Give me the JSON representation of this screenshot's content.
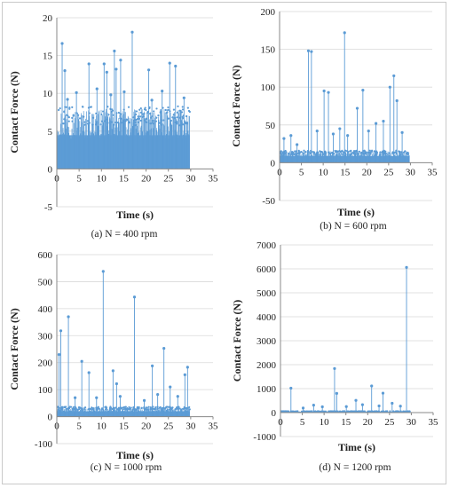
{
  "figure": {
    "series_color": "#5b9bd5",
    "axis_color": "#888888",
    "grid_color": "#d9d9d9"
  },
  "chart_data": [
    {
      "id": "a",
      "type": "scatter",
      "caption": "(a) N = 400 rpm",
      "xlabel": "Time (s)",
      "ylabel": "Contact Force (N)",
      "xlim": [
        0,
        35
      ],
      "ylim": [
        -5,
        20
      ],
      "xticks": [
        0,
        5,
        10,
        15,
        20,
        25,
        30,
        35
      ],
      "yticks": [
        -5,
        0,
        5,
        10,
        15,
        20
      ],
      "dense_band": {
        "x_range": [
          0.1,
          29.8
        ],
        "y_level": 7.2,
        "y_top": 8.2
      },
      "spikes": [
        {
          "x": 1.2,
          "y": 16.6
        },
        {
          "x": 1.8,
          "y": 13.0
        },
        {
          "x": 2.4,
          "y": 9.2
        },
        {
          "x": 4.4,
          "y": 10.1
        },
        {
          "x": 7.2,
          "y": 13.9
        },
        {
          "x": 9.0,
          "y": 10.6
        },
        {
          "x": 10.6,
          "y": 13.9
        },
        {
          "x": 11.2,
          "y": 12.8
        },
        {
          "x": 12.1,
          "y": 9.8
        },
        {
          "x": 12.9,
          "y": 15.6
        },
        {
          "x": 13.3,
          "y": 13.2
        },
        {
          "x": 14.3,
          "y": 14.4
        },
        {
          "x": 15.1,
          "y": 10.2
        },
        {
          "x": 16.9,
          "y": 18.1
        },
        {
          "x": 20.6,
          "y": 13.1
        },
        {
          "x": 21.3,
          "y": 9.1
        },
        {
          "x": 23.6,
          "y": 10.3
        },
        {
          "x": 25.3,
          "y": 14.0
        },
        {
          "x": 26.6,
          "y": 13.6
        },
        {
          "x": 28.5,
          "y": 9.4
        }
      ]
    },
    {
      "id": "b",
      "type": "scatter",
      "caption": "(b) N = 600 rpm",
      "xlabel": "Time (s)",
      "ylabel": "Contact Force (N)",
      "xlim": [
        0,
        35
      ],
      "ylim": [
        -50,
        200
      ],
      "xticks": [
        0,
        5,
        10,
        15,
        20,
        25,
        30,
        35
      ],
      "yticks": [
        -50,
        0,
        50,
        100,
        150,
        200
      ],
      "dense_band": {
        "x_range": [
          0.1,
          29.8
        ],
        "y_level": 14,
        "y_top": 20
      },
      "spikes": [
        {
          "x": 1.0,
          "y": 32
        },
        {
          "x": 2.6,
          "y": 36
        },
        {
          "x": 4.0,
          "y": 24
        },
        {
          "x": 6.6,
          "y": 148
        },
        {
          "x": 7.3,
          "y": 147
        },
        {
          "x": 8.6,
          "y": 42
        },
        {
          "x": 10.2,
          "y": 95
        },
        {
          "x": 11.2,
          "y": 93
        },
        {
          "x": 12.3,
          "y": 38
        },
        {
          "x": 13.8,
          "y": 45
        },
        {
          "x": 14.9,
          "y": 172
        },
        {
          "x": 15.6,
          "y": 36
        },
        {
          "x": 17.8,
          "y": 72
        },
        {
          "x": 19.1,
          "y": 96
        },
        {
          "x": 20.4,
          "y": 42
        },
        {
          "x": 22.1,
          "y": 52
        },
        {
          "x": 23.8,
          "y": 55
        },
        {
          "x": 25.3,
          "y": 100
        },
        {
          "x": 26.2,
          "y": 115
        },
        {
          "x": 26.9,
          "y": 82
        },
        {
          "x": 28.1,
          "y": 40
        }
      ]
    },
    {
      "id": "c",
      "type": "scatter",
      "caption": "(c) N = 1000 rpm",
      "xlabel": "Time (s)",
      "ylabel": "Contact Force (N)",
      "xlim": [
        0,
        35
      ],
      "ylim": [
        -100,
        600
      ],
      "xticks": [
        0,
        5,
        10,
        15,
        20,
        25,
        30,
        35
      ],
      "yticks": [
        -100,
        0,
        100,
        200,
        300,
        400,
        500,
        600
      ],
      "dense_band": {
        "x_range": [
          0.1,
          29.8
        ],
        "y_level": 32,
        "y_top": 50
      },
      "spikes": [
        {
          "x": 0.5,
          "y": 230
        },
        {
          "x": 0.9,
          "y": 318
        },
        {
          "x": 2.6,
          "y": 370
        },
        {
          "x": 4.1,
          "y": 70
        },
        {
          "x": 5.6,
          "y": 205
        },
        {
          "x": 7.2,
          "y": 163
        },
        {
          "x": 8.9,
          "y": 70
        },
        {
          "x": 10.4,
          "y": 538
        },
        {
          "x": 12.6,
          "y": 170
        },
        {
          "x": 13.4,
          "y": 122
        },
        {
          "x": 14.2,
          "y": 75
        },
        {
          "x": 17.4,
          "y": 443
        },
        {
          "x": 19.6,
          "y": 60
        },
        {
          "x": 21.4,
          "y": 188
        },
        {
          "x": 22.6,
          "y": 82
        },
        {
          "x": 24.0,
          "y": 253
        },
        {
          "x": 25.4,
          "y": 110
        },
        {
          "x": 27.1,
          "y": 75
        },
        {
          "x": 28.7,
          "y": 155
        },
        {
          "x": 29.3,
          "y": 183
        }
      ]
    },
    {
      "id": "d",
      "type": "scatter",
      "caption": "(d) N = 1200 rpm",
      "xlabel": "Time (s)",
      "ylabel": "Contact Force (N)",
      "xlim": [
        0,
        35
      ],
      "ylim": [
        -1000,
        7000
      ],
      "xticks": [
        0,
        5,
        10,
        15,
        20,
        25,
        30,
        35
      ],
      "yticks": [
        -1000,
        0,
        1000,
        2000,
        3000,
        4000,
        5000,
        6000,
        7000
      ],
      "dense_band": {
        "x_range": [
          0.1,
          29.8
        ],
        "y_level": 50,
        "y_top": 110
      },
      "spikes": [
        {
          "x": 2.4,
          "y": 1020
        },
        {
          "x": 5.2,
          "y": 190
        },
        {
          "x": 7.6,
          "y": 310
        },
        {
          "x": 9.6,
          "y": 240
        },
        {
          "x": 12.4,
          "y": 1840
        },
        {
          "x": 12.9,
          "y": 800
        },
        {
          "x": 15.1,
          "y": 250
        },
        {
          "x": 17.3,
          "y": 510
        },
        {
          "x": 18.8,
          "y": 330
        },
        {
          "x": 20.9,
          "y": 1110
        },
        {
          "x": 22.6,
          "y": 280
        },
        {
          "x": 23.5,
          "y": 810
        },
        {
          "x": 25.6,
          "y": 390
        },
        {
          "x": 27.5,
          "y": 270
        },
        {
          "x": 28.9,
          "y": 6060
        }
      ]
    }
  ]
}
